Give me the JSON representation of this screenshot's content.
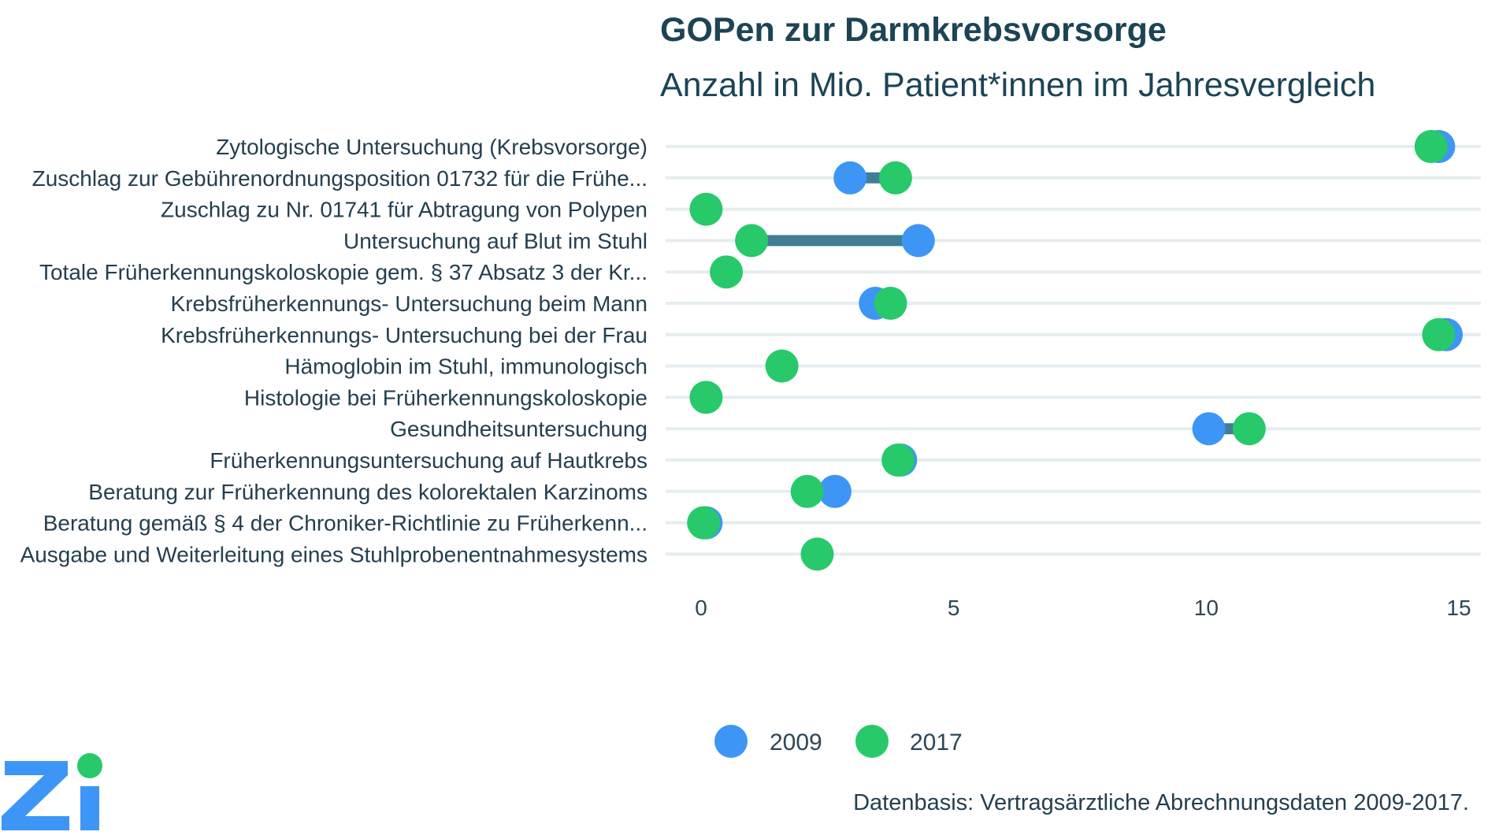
{
  "chart_data": {
    "type": "dumbbell",
    "title": "GOPen zur Darmkrebsvorsorge",
    "subtitle": "Anzahl in Mio. Patient*innen im Jahresvergleich",
    "xlabel": "",
    "ylabel": "",
    "xlim": [
      0,
      15
    ],
    "xticks": [
      0,
      5,
      10,
      15
    ],
    "grid": true,
    "legend_position": "bottom",
    "categories": [
      "Zytologische Untersuchung (Krebsvorsorge)",
      "Zuschlag zur Gebührenordnungsposition 01732 für die Frühe...",
      "Zuschlag zu Nr. 01741 für Abtragung von Polypen",
      "Untersuchung auf Blut im Stuhl",
      "Totale Früherkennungskoloskopie gem. § 37 Absatz 3 der Kr...",
      "Krebsfrüherkennungs- Untersuchung beim Mann",
      "Krebsfrüherkennungs- Untersuchung bei der Frau",
      "Hämoglobin im Stuhl, immunologisch",
      "Histologie bei Früherkennungskoloskopie",
      "Gesundheitsuntersuchung",
      "Früherkennungsuntersuchung auf Hautkrebs",
      "Beratung zur Früherkennung des kolorektalen Karzinoms",
      "Beratung gemäß § 4 der Chroniker-Richtlinie zu Früherkenn...",
      "Ausgabe und Weiterleitung eines Stuhlprobenentnahmesystems"
    ],
    "series": [
      {
        "name": "2009",
        "color": "#3d96f5",
        "values": [
          14.6,
          2.95,
          null,
          4.3,
          null,
          3.45,
          14.75,
          null,
          null,
          10.05,
          3.95,
          2.65,
          0.1,
          null
        ]
      },
      {
        "name": "2017",
        "color": "#27c96a",
        "values": [
          14.45,
          3.85,
          0.1,
          1.0,
          0.5,
          3.75,
          14.6,
          1.6,
          0.1,
          10.85,
          3.9,
          2.1,
          0.05,
          2.3
        ]
      }
    ],
    "connector_color": "#3f7e94",
    "source": "Datenbasis: Vertragsärztliche Abrechnungsdaten 2009-2017."
  },
  "logo": {
    "text": "Zi",
    "letter_color": "#3d96f5",
    "dot_color": "#27c96a"
  }
}
